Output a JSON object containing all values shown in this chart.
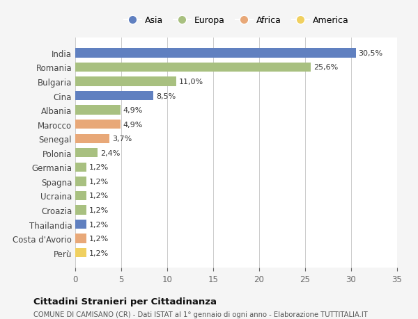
{
  "countries": [
    "India",
    "Romania",
    "Bulgaria",
    "Cina",
    "Albania",
    "Marocco",
    "Senegal",
    "Polonia",
    "Germania",
    "Spagna",
    "Ucraina",
    "Croazia",
    "Thailandia",
    "Costa d'Avorio",
    "Perù"
  ],
  "values": [
    30.5,
    25.6,
    11.0,
    8.5,
    4.9,
    4.9,
    3.7,
    2.4,
    1.2,
    1.2,
    1.2,
    1.2,
    1.2,
    1.2,
    1.2
  ],
  "labels": [
    "30,5%",
    "25,6%",
    "11,0%",
    "8,5%",
    "4,9%",
    "4,9%",
    "3,7%",
    "2,4%",
    "1,2%",
    "1,2%",
    "1,2%",
    "1,2%",
    "1,2%",
    "1,2%",
    "1,2%"
  ],
  "continents": [
    "Asia",
    "Europa",
    "Europa",
    "Asia",
    "Europa",
    "Africa",
    "Africa",
    "Europa",
    "Europa",
    "Europa",
    "Europa",
    "Europa",
    "Asia",
    "Africa",
    "America"
  ],
  "continent_colors": {
    "Asia": "#6080c0",
    "Europa": "#a8c080",
    "Africa": "#e8a878",
    "America": "#f0d060"
  },
  "legend_order": [
    "Asia",
    "Europa",
    "Africa",
    "America"
  ],
  "title": "Cittadini Stranieri per Cittadinanza",
  "subtitle": "COMUNE DI CAMISANO (CR) - Dati ISTAT al 1° gennaio di ogni anno - Elaborazione TUTTITALIA.IT",
  "xlim": [
    0,
    35
  ],
  "xticks": [
    0,
    5,
    10,
    15,
    20,
    25,
    30,
    35
  ],
  "background_color": "#f5f5f5",
  "bar_background": "#ffffff"
}
